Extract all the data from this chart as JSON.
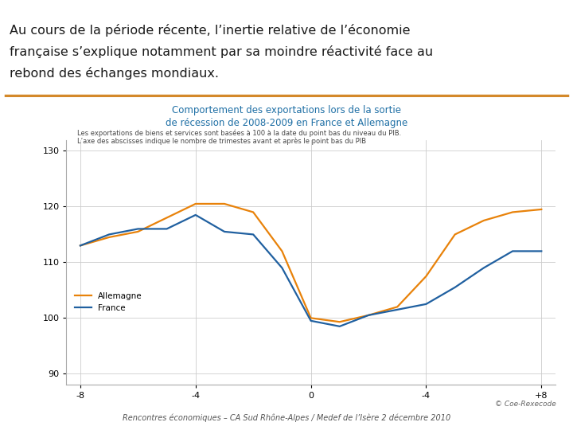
{
  "title_main_line1": "Au cours de la période récente, l’inertie relative de l’économie",
  "title_main_line2": "française s’explique notamment par sa moindre réactivité face au",
  "title_main_line3": "rebond des échanges mondiaux.",
  "chart_title_line1": "Comportement des exportations lors de la sortie",
  "chart_title_line2": "de récession de 2008-2009 en France et Allemagne",
  "subtitle_line1": "Les exportations de biens et services sont basées à 100 à la date du point bas du niveau du PIB.",
  "subtitle_line2": "L’axe des abscisses indique le nombre de trimestes avant et après le point bas du PIB",
  "footer": "Rencontres économiques – CA Sud Rhône-Alpes / Medef de l’Isère 2 décembre 2010",
  "watermark": "© Coe-Rexecode",
  "x_allemagne": [
    -8,
    -7,
    -6,
    -5,
    -4,
    -3,
    -2,
    -1,
    0,
    1,
    2,
    3,
    4,
    5,
    6,
    7,
    8
  ],
  "y_allemagne": [
    113.0,
    114.5,
    115.5,
    118.0,
    120.5,
    120.5,
    119.0,
    112.0,
    100.0,
    99.3,
    100.5,
    102.0,
    107.5,
    115.0,
    117.5,
    119.0,
    119.5
  ],
  "x_france": [
    -8,
    -7,
    -6,
    -5,
    -4,
    -3,
    -2,
    -1,
    0,
    1,
    2,
    3,
    4,
    5,
    6,
    7,
    8
  ],
  "y_france": [
    113.0,
    115.0,
    116.0,
    116.0,
    118.5,
    115.5,
    115.0,
    109.0,
    99.5,
    98.5,
    100.5,
    101.5,
    102.5,
    105.5,
    109.0,
    112.0,
    112.0
  ],
  "color_allemagne": "#E8820A",
  "color_france": "#2060A0",
  "legend_allemagne": "Allemagne",
  "legend_france": "France",
  "xlim": [
    -8.5,
    8.5
  ],
  "ylim": [
    88,
    132
  ],
  "yticks": [
    90,
    100,
    110,
    120,
    130
  ],
  "divider_color": "#D4892A",
  "title_color": "#1A1A1A",
  "chart_title_color": "#1E6FA5",
  "bg_color": "#FFFFFF",
  "grid_color": "#CCCCCC"
}
